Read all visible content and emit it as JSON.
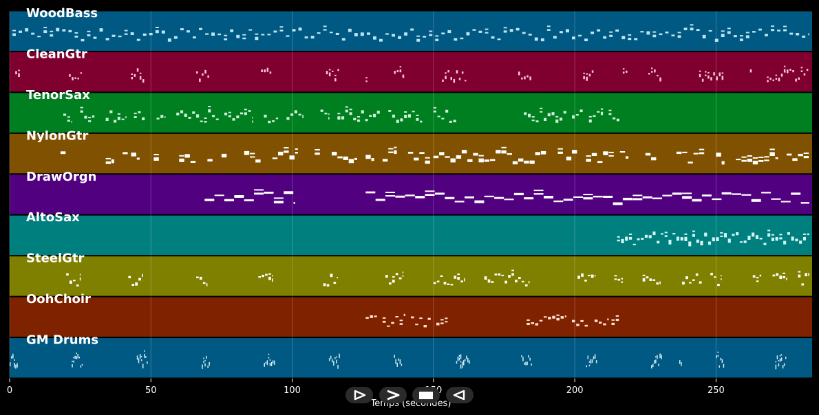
{
  "chart_data": {
    "type": "piano-roll",
    "xlabel": "Temps (secondes)",
    "xlim": [
      0,
      284
    ],
    "xticks": [
      0,
      50,
      100,
      150,
      200,
      250
    ],
    "grid": true,
    "tracks": [
      {
        "name": "WoodBass",
        "color": "#005983",
        "note_color": "#bfe3f0",
        "density": "dense",
        "segments": [
          [
            1,
            283
          ]
        ],
        "pattern": {
          "period": 2.2,
          "len": 1.2,
          "hmax": 3
        }
      },
      {
        "name": "CleanGtr",
        "color": "#7f002e",
        "note_color": "#f6c9d6",
        "density": "sparse",
        "segments": [
          [
            2,
            4
          ],
          [
            21,
            26
          ],
          [
            43,
            48
          ],
          [
            66,
            71
          ],
          [
            89,
            93
          ],
          [
            112,
            117
          ],
          [
            126,
            127
          ],
          [
            136,
            140
          ],
          [
            153,
            162
          ],
          [
            180,
            185
          ],
          [
            203,
            207
          ],
          [
            217,
            219
          ],
          [
            226,
            231
          ],
          [
            244,
            253
          ],
          [
            262,
            263
          ],
          [
            268,
            283
          ]
        ],
        "pattern": {
          "period": 1.0,
          "len": 0.6,
          "hmax": 4
        }
      },
      {
        "name": "TenorSax",
        "color": "#007f21",
        "note_color": "#d2f0d6",
        "density": "phrases",
        "segments": [
          [
            19,
            22
          ],
          [
            25,
            30
          ],
          [
            34,
            41
          ],
          [
            44,
            48
          ],
          [
            52,
            55
          ],
          [
            59,
            74
          ],
          [
            76,
            86
          ],
          [
            90,
            95
          ],
          [
            98,
            104
          ],
          [
            110,
            113
          ],
          [
            116,
            131
          ],
          [
            134,
            146
          ],
          [
            150,
            158
          ],
          [
            182,
            197
          ],
          [
            199,
            203
          ],
          [
            205,
            210
          ],
          [
            212,
            216
          ]
        ],
        "pattern": {
          "period": 1.4,
          "len": 1.0,
          "hmax": 3
        }
      },
      {
        "name": "NylonGtr",
        "color": "#7f5100",
        "note_color": "#ffffff",
        "density": "blocks",
        "segments": [
          [
            18,
            20
          ],
          [
            34,
            37
          ],
          [
            40,
            42
          ],
          [
            43,
            46
          ],
          [
            51,
            53
          ],
          [
            60,
            66
          ],
          [
            70,
            72
          ],
          [
            75,
            77
          ],
          [
            83,
            89
          ],
          [
            93,
            102
          ],
          [
            108,
            110
          ],
          [
            114,
            123
          ],
          [
            126,
            129
          ],
          [
            132,
            137
          ],
          [
            141,
            149
          ],
          [
            150,
            190
          ],
          [
            194,
            196
          ],
          [
            197,
            201
          ],
          [
            204,
            214
          ],
          [
            216,
            219
          ],
          [
            225,
            229
          ],
          [
            236,
            246
          ],
          [
            250,
            253
          ],
          [
            257,
            272
          ],
          [
            275,
            283
          ]
        ],
        "pattern": {
          "period": 2.0,
          "len": 1.8,
          "hmax": 4
        }
      },
      {
        "name": "DrawOrgn",
        "color": "#51007f",
        "note_color": "#ffffff",
        "density": "sustained",
        "segments": [
          [
            69,
            101
          ],
          [
            126,
            283
          ]
        ],
        "pattern": {
          "period": 3.5,
          "len": 3.4,
          "hmax": 2
        }
      },
      {
        "name": "AltoSax",
        "color": "#007f7f",
        "note_color": "#d6f5f5",
        "density": "melody",
        "segments": [
          [
            215,
            283
          ]
        ],
        "pattern": {
          "period": 1.4,
          "len": 1.0,
          "hmax": 5
        }
      },
      {
        "name": "SteelGtr",
        "color": "#7f7f00",
        "note_color": "#ffffff",
        "density": "clusters",
        "segments": [
          [
            20,
            25
          ],
          [
            42,
            47
          ],
          [
            66,
            70
          ],
          [
            88,
            93
          ],
          [
            111,
            116
          ],
          [
            133,
            139
          ],
          [
            150,
            161
          ],
          [
            168,
            184
          ],
          [
            201,
            207
          ],
          [
            214,
            217
          ],
          [
            224,
            230
          ],
          [
            238,
            245
          ],
          [
            248,
            252
          ],
          [
            263,
            266
          ],
          [
            270,
            275
          ],
          [
            279,
            283
          ]
        ],
        "pattern": {
          "period": 1.2,
          "len": 0.9,
          "hmax": 3
        }
      },
      {
        "name": "OohChoir",
        "color": "#7f2200",
        "note_color": "#ffe1d6",
        "density": "phrases",
        "segments": [
          [
            126,
            130
          ],
          [
            132,
            140
          ],
          [
            142,
            149
          ],
          [
            151,
            155
          ],
          [
            183,
            197
          ],
          [
            199,
            205
          ],
          [
            207,
            212
          ],
          [
            213,
            216
          ]
        ],
        "pattern": {
          "period": 1.5,
          "len": 1.1,
          "hmax": 2
        }
      },
      {
        "name": "GM Drums",
        "color": "#005983",
        "note_color": "#d6ecf5",
        "density": "fills",
        "segments": [
          [
            0,
            3
          ],
          [
            22,
            26
          ],
          [
            45,
            49
          ],
          [
            68,
            71
          ],
          [
            90,
            94
          ],
          [
            113,
            117
          ],
          [
            136,
            139
          ],
          [
            158,
            161
          ],
          [
            159,
            163
          ],
          [
            181,
            185
          ],
          [
            204,
            208
          ],
          [
            227,
            231
          ],
          [
            237,
            238
          ],
          [
            250,
            253
          ],
          [
            271,
            275
          ]
        ],
        "pattern": {
          "period": 0.5,
          "len": 0.35,
          "hmax": 5
        }
      }
    ]
  },
  "controls": {
    "play_glyph": "▷",
    "forward_glyph": ">",
    "stop_glyph": "■",
    "back_glyph": "◁"
  }
}
